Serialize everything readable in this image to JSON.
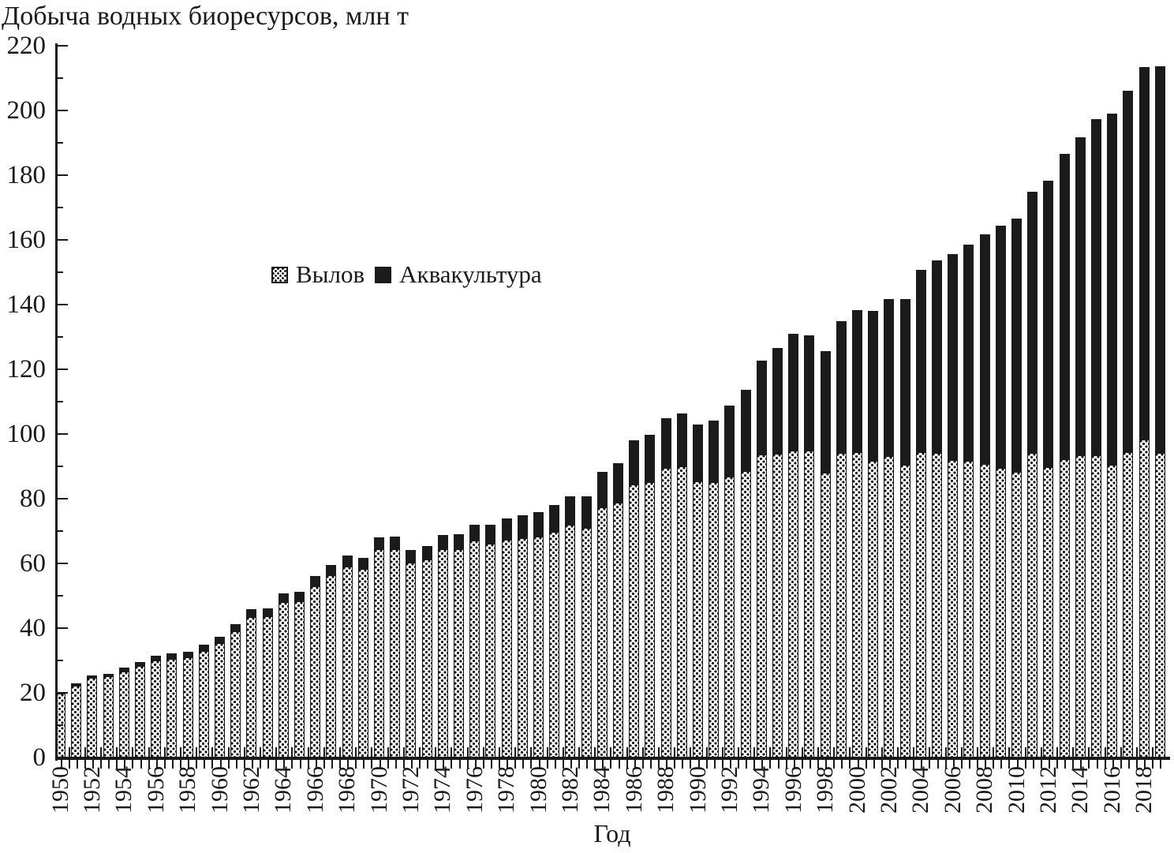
{
  "figure": {
    "title": "Добыча водных биоресурсов, млн т",
    "x_axis_title": "Год"
  },
  "colors": {
    "background": "#ffffff",
    "axis": "#1a1a1a",
    "aquaculture_fill": "#1b1b1b",
    "catch_pattern_dot": "#111111",
    "catch_fill": "#ffffff"
  },
  "chart_data": {
    "type": "bar",
    "stacked": true,
    "title": "Добыча водных биоресурсов, млн т",
    "xlabel": "Год",
    "ylabel": "млн т",
    "ylim": [
      0,
      220
    ],
    "ytick_step": 20,
    "y_minor_tick_step": 10,
    "grid": false,
    "legend_position": "inside-upper-left",
    "y_tick_labels": [
      "0",
      "20",
      "40",
      "60",
      "80",
      "100",
      "120",
      "140",
      "160",
      "180",
      "200",
      "220"
    ],
    "x_tick_labels": [
      "1950",
      "1952",
      "1954",
      "1956",
      "1958",
      "1960",
      "1962",
      "1964",
      "1966",
      "1968",
      "1970",
      "1972",
      "1974",
      "1976",
      "1978",
      "1980",
      "1982",
      "1984",
      "1986",
      "1988",
      "1990",
      "1992",
      "1994",
      "1996",
      "1998",
      "2000",
      "2002",
      "2004",
      "2006",
      "2008",
      "2010",
      "2012",
      "2014",
      "2016",
      "2018"
    ],
    "categories": [
      1950,
      1951,
      1952,
      1953,
      1954,
      1955,
      1956,
      1957,
      1958,
      1959,
      1960,
      1961,
      1962,
      1963,
      1964,
      1965,
      1966,
      1967,
      1968,
      1969,
      1970,
      1971,
      1972,
      1973,
      1974,
      1975,
      1976,
      1977,
      1978,
      1979,
      1980,
      1981,
      1982,
      1983,
      1984,
      1985,
      1986,
      1987,
      1988,
      1989,
      1990,
      1991,
      1992,
      1993,
      1994,
      1995,
      1996,
      1997,
      1998,
      1999,
      2000,
      2001,
      2002,
      2003,
      2004,
      2005,
      2006,
      2007,
      2008,
      2009,
      2010,
      2011,
      2012,
      2013,
      2014,
      2015,
      2016,
      2017,
      2018,
      2019
    ],
    "series": [
      {
        "name": "Вылов",
        "style": "dotted-pattern",
        "values": [
          19.7,
          22.2,
          24.6,
          25.0,
          26.7,
          28.4,
          30.1,
          30.6,
          31.0,
          33.0,
          35.3,
          39.0,
          43.5,
          43.6,
          48.0,
          48.4,
          53.0,
          56.3,
          59.1,
          58.2,
          64.4,
          64.5,
          60.2,
          61.1,
          64.3,
          64.4,
          67.0,
          66.0,
          67.4,
          67.9,
          68.3,
          69.8,
          71.9,
          71.0,
          77.2,
          78.7,
          84.4,
          85.2,
          89.4,
          90.0,
          85.4,
          85.0,
          86.9,
          88.6,
          93.7,
          94.0,
          94.9,
          94.9,
          88.0,
          94.1,
          94.5,
          91.8,
          93.2,
          90.5,
          94.5,
          94.2,
          92.0,
          91.8,
          90.8,
          89.6,
          88.4,
          94.2,
          89.8,
          92.3,
          93.3,
          93.5,
          90.5,
          94.5,
          98.3,
          94.1
        ]
      },
      {
        "name": "Аквакультура",
        "style": "solid-black",
        "values": [
          0.6,
          0.7,
          0.8,
          0.9,
          1.0,
          1.2,
          1.4,
          1.5,
          1.7,
          1.8,
          2.0,
          2.2,
          2.3,
          2.5,
          2.7,
          2.9,
          3.1,
          3.3,
          3.4,
          3.5,
          3.6,
          3.8,
          4.0,
          4.2,
          4.5,
          4.7,
          5.0,
          6.0,
          6.6,
          7.0,
          7.6,
          8.2,
          8.9,
          9.8,
          11.0,
          12.2,
          13.6,
          14.6,
          15.5,
          16.4,
          17.6,
          19.2,
          21.8,
          25.0,
          29.0,
          32.6,
          36.0,
          35.5,
          37.6,
          40.7,
          43.8,
          46.2,
          48.5,
          51.2,
          56.2,
          59.5,
          63.5,
          66.8,
          70.8,
          74.7,
          78.3,
          80.6,
          88.6,
          94.4,
          98.5,
          103.7,
          108.6,
          111.7,
          115.2,
          119.6
        ]
      }
    ]
  }
}
